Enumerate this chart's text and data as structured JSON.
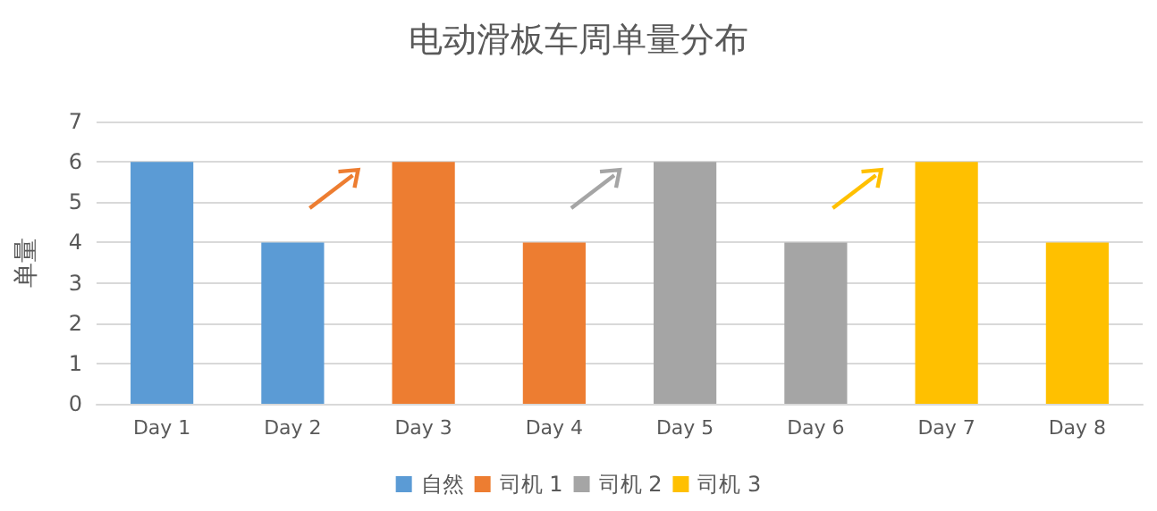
{
  "chart_data": {
    "type": "bar",
    "title": "电动滑板车周单量分布",
    "ylabel": "单量",
    "categories": [
      "Day 1",
      "Day 2",
      "Day 3",
      "Day 4",
      "Day 5",
      "Day 6",
      "Day 7",
      "Day 8"
    ],
    "series": [
      {
        "name": "自然",
        "color": "#5b9bd5",
        "values": [
          6,
          4,
          null,
          null,
          null,
          null,
          null,
          null
        ]
      },
      {
        "name": "司机 1",
        "color": "#ed7d31",
        "values": [
          null,
          null,
          6,
          4,
          null,
          null,
          null,
          null
        ]
      },
      {
        "name": "司机 2",
        "color": "#a5a5a5",
        "values": [
          null,
          null,
          null,
          null,
          6,
          4,
          null,
          null
        ]
      },
      {
        "name": "司机 3",
        "color": "#ffc000",
        "values": [
          null,
          null,
          null,
          null,
          null,
          null,
          6,
          4
        ]
      }
    ],
    "ylim": [
      0,
      7
    ],
    "yticks": [
      0,
      1,
      2,
      3,
      4,
      5,
      6,
      7
    ],
    "grid": "y",
    "legend": "bottom"
  }
}
